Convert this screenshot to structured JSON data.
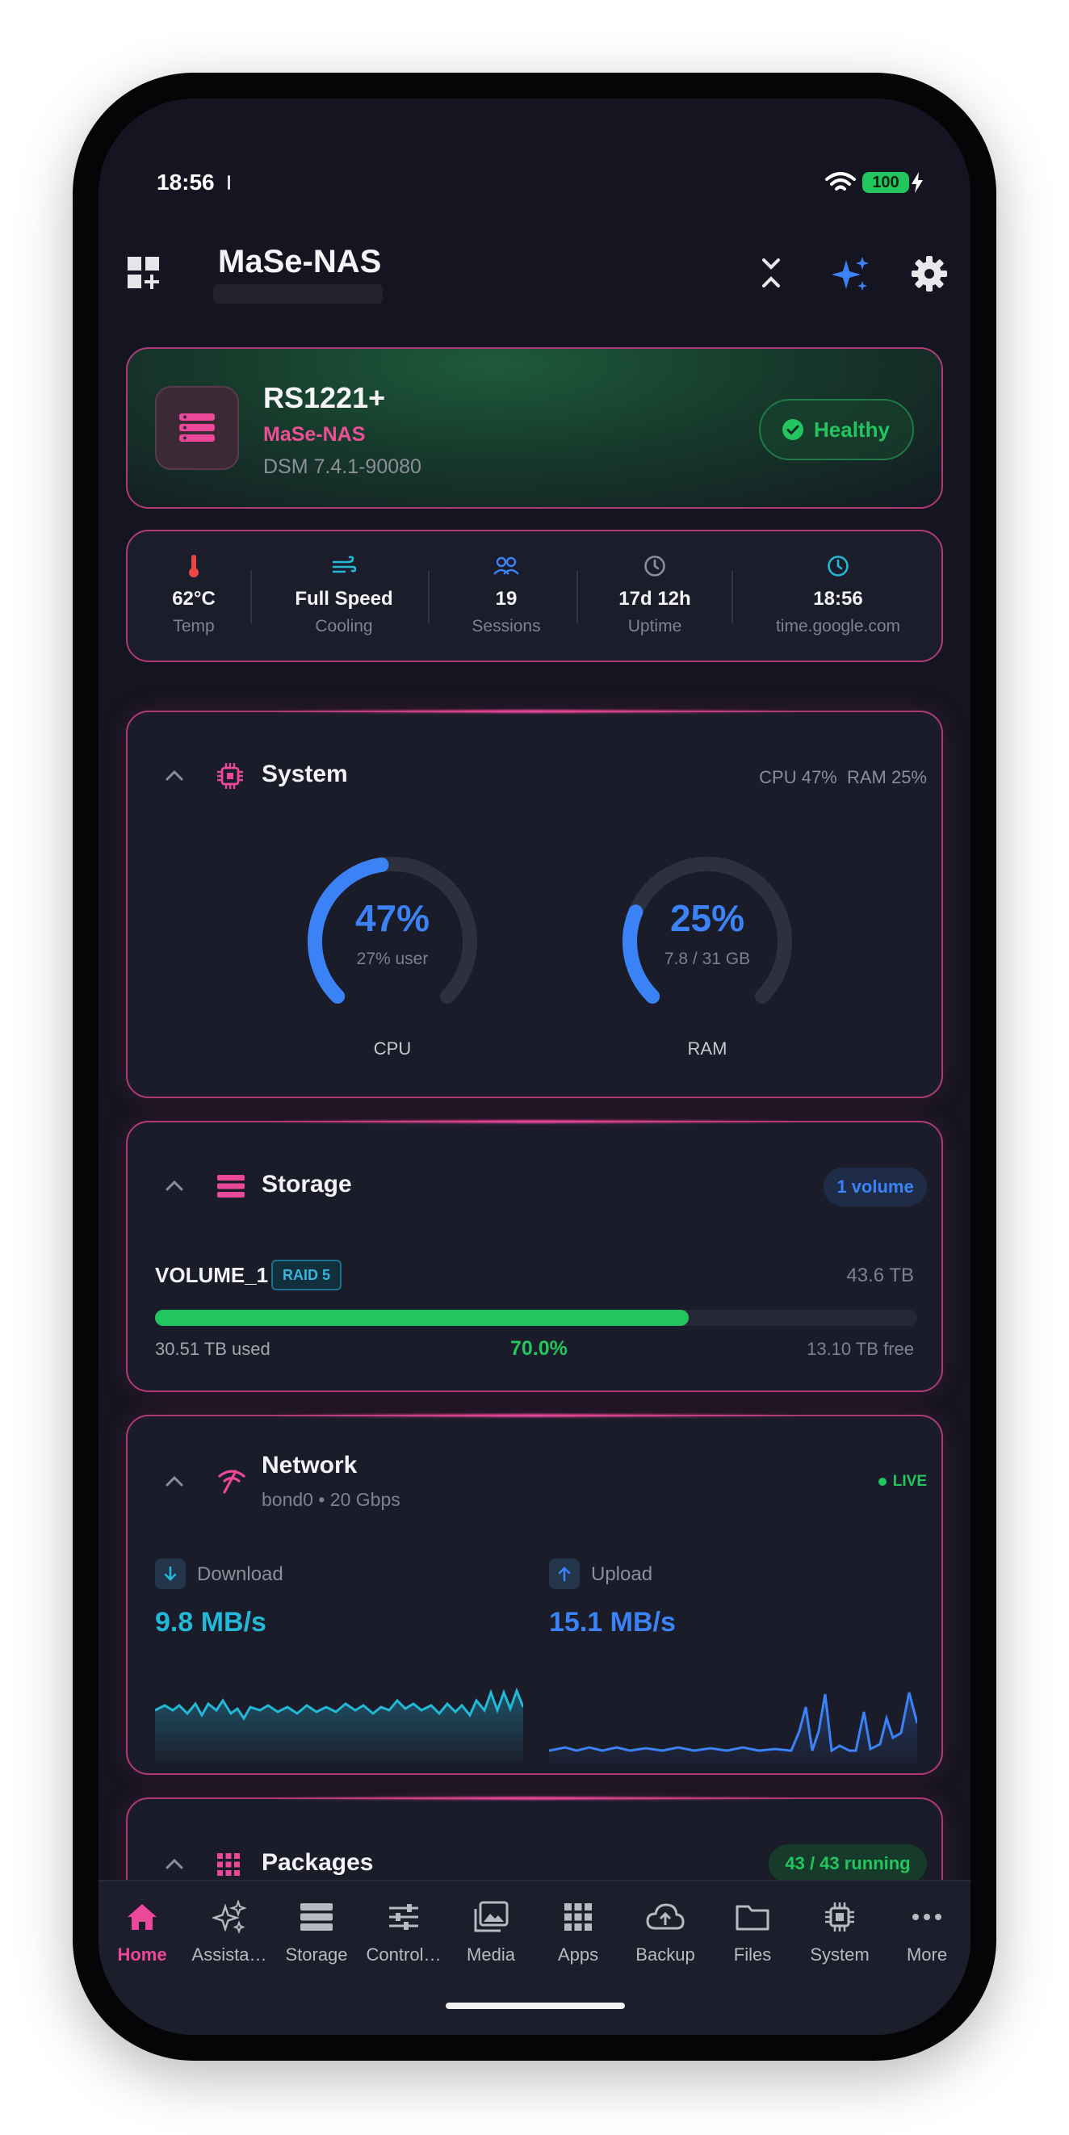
{
  "status": {
    "time": "18:56",
    "battery": "100"
  },
  "header": {
    "title": "MaSe-NAS"
  },
  "device": {
    "model": "RS1221+",
    "name": "MaSe-NAS",
    "dsm": "DSM 7.4.1-90080",
    "health": "Healthy"
  },
  "stats": [
    {
      "value": "62°C",
      "label": "Temp",
      "icon": "thermometer-icon"
    },
    {
      "value": "Full Speed",
      "label": "Cooling",
      "icon": "fan-wind-icon"
    },
    {
      "value": "19",
      "label": "Sessions",
      "icon": "users-icon"
    },
    {
      "value": "17d 12h",
      "label": "Uptime",
      "icon": "clock-icon"
    },
    {
      "value": "18:56",
      "label": "time.google.com",
      "icon": "clock-icon"
    }
  ],
  "system": {
    "title": "System",
    "summary": "CPU 47%  RAM 25%",
    "cpu": {
      "percent": 47,
      "pct_label": "47%",
      "sub": "27% user",
      "label": "CPU"
    },
    "ram": {
      "percent": 25,
      "pct_label": "25%",
      "sub": "7.8 / 31 GB",
      "label": "RAM"
    }
  },
  "storage": {
    "title": "Storage",
    "badge": "1 volume",
    "volume": {
      "name": "VOLUME_1",
      "raid": "RAID 5",
      "size": "43.6 TB",
      "used": "30.51 TB used",
      "percent": 70.0,
      "percent_label": "70.0%",
      "free": "13.10 TB free"
    }
  },
  "network": {
    "title": "Network",
    "subtitle": "bond0 • 20 Gbps",
    "live": "LIVE",
    "download": {
      "label": "Download",
      "speed": "9.8 MB/s"
    },
    "upload": {
      "label": "Upload",
      "speed": "15.1 MB/s"
    }
  },
  "packages": {
    "title": "Packages",
    "badge": "43 / 43 running"
  },
  "nav": [
    {
      "label": "Home",
      "icon": "home-icon",
      "active": true
    },
    {
      "label": "Assista…",
      "icon": "sparkle-icon"
    },
    {
      "label": "Storage",
      "icon": "storage-icon"
    },
    {
      "label": "Control…",
      "icon": "sliders-icon"
    },
    {
      "label": "Media",
      "icon": "media-icon"
    },
    {
      "label": "Apps",
      "icon": "apps-grid-icon"
    },
    {
      "label": "Backup",
      "icon": "cloud-upload-icon"
    },
    {
      "label": "Files",
      "icon": "folder-icon"
    },
    {
      "label": "System",
      "icon": "chip-icon"
    },
    {
      "label": "More",
      "icon": "more-icon"
    }
  ],
  "colors": {
    "accent": "#ec4899",
    "blue": "#3b82f6",
    "green": "#22c55e",
    "cyan": "#22b8d6"
  }
}
